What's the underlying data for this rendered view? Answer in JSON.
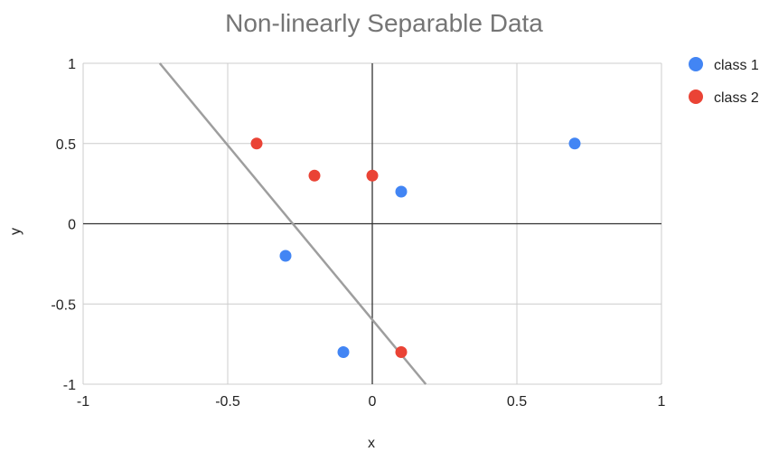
{
  "chart_data": {
    "type": "scatter",
    "title": "Non-linearly Separable Data",
    "xlabel": "x",
    "ylabel": "y",
    "xlim": [
      -1,
      1
    ],
    "ylim": [
      -1,
      1
    ],
    "x_ticks": [
      -1,
      -0.5,
      0,
      0.5,
      1
    ],
    "y_ticks": [
      -1,
      -0.5,
      0,
      0.5,
      1
    ],
    "x_tick_labels": [
      "-1",
      "-0.5",
      "0",
      "0.5",
      "1"
    ],
    "y_tick_labels": [
      "-1",
      "-0.5",
      "0",
      "0.5",
      "1"
    ],
    "grid": true,
    "legend_position": "right",
    "series": [
      {
        "name": "class 1",
        "color": "#4285f4",
        "points": [
          {
            "x": -0.3,
            "y": -0.2
          },
          {
            "x": -0.1,
            "y": -0.8
          },
          {
            "x": 0.1,
            "y": 0.2
          },
          {
            "x": 0.7,
            "y": 0.5
          }
        ]
      },
      {
        "name": "class 2",
        "color": "#ea4335",
        "points": [
          {
            "x": -0.4,
            "y": 0.5
          },
          {
            "x": -0.2,
            "y": 0.3
          },
          {
            "x": 0.0,
            "y": 0.3
          },
          {
            "x": 0.1,
            "y": -0.8
          }
        ]
      }
    ],
    "decision_line": {
      "color": "#9e9e9e",
      "from": {
        "x": -0.735,
        "y": 1.0
      },
      "to": {
        "x": 0.185,
        "y": -1.0
      }
    },
    "grid_color": "#cccccc",
    "axis_color": "#333333"
  }
}
